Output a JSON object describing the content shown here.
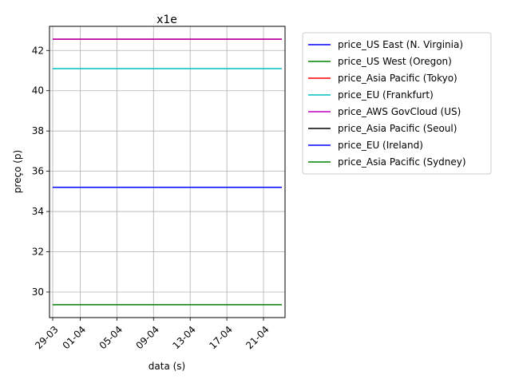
{
  "chart_data": {
    "type": "line",
    "title": "x1e",
    "xlabel": "data (s)",
    "ylabel": "preço (p)",
    "x_ticks": [
      "29-03",
      "01-04",
      "05-04",
      "09-04",
      "13-04",
      "17-04",
      "21-04"
    ],
    "x_tick_dates": [
      "2017-03-29",
      "2017-04-01",
      "2017-04-05",
      "2017-04-09",
      "2017-04-13",
      "2017-04-17",
      "2017-04-21"
    ],
    "x_range": [
      "2017-03-29",
      "2017-04-23"
    ],
    "y_ticks": [
      30,
      32,
      34,
      36,
      38,
      40,
      42
    ],
    "ylim": [
      28.73,
      43.2
    ],
    "grid": true,
    "legend_position": "outside-right",
    "series": [
      {
        "name": "price_US East (N. Virginia)",
        "color": "#0000ff",
        "y": 35.2
      },
      {
        "name": "price_US West (Oregon)",
        "color": "#008000",
        "y": 42.56
      },
      {
        "name": "price_Asia Pacific (Tokyo)",
        "color": "#ff0000",
        "y": 42.56
      },
      {
        "name": "price_EU (Frankfurt)",
        "color": "#00bfbf",
        "y": 41.1
      },
      {
        "name": "price_AWS GovCloud (US)",
        "color": "#bf00bf",
        "y": 42.56
      },
      {
        "name": "price_Asia Pacific (Seoul)",
        "color": "#000000",
        "y": 35.2
      },
      {
        "name": "price_EU (Ireland)",
        "color": "#0000ff",
        "y": 35.2
      },
      {
        "name": "price_Asia Pacific (Sydney)",
        "color": "#008000",
        "y": 29.37
      }
    ]
  }
}
